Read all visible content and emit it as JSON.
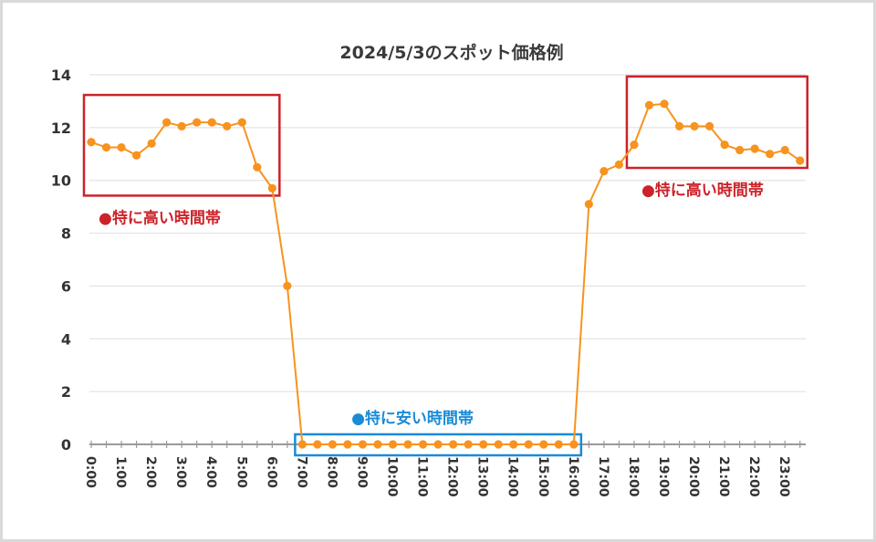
{
  "chart_data": {
    "type": "line",
    "title": "2024/5/3のスポット価格例",
    "xlabel": "",
    "ylabel": "",
    "ylim": [
      0,
      14
    ],
    "yticks": [
      0,
      2,
      4,
      6,
      8,
      10,
      12,
      14
    ],
    "grid": true,
    "x_tick_labels": [
      "0:00",
      "1:00",
      "2:00",
      "3:00",
      "4:00",
      "5:00",
      "6:00",
      "7:00",
      "8:00",
      "9:00",
      "10:00",
      "11:00",
      "12:00",
      "13:00",
      "14:00",
      "15:00",
      "16:00",
      "17:00",
      "18:00",
      "19:00",
      "20:00",
      "21:00",
      "22:00",
      "23:00"
    ],
    "x": [
      "0:00",
      "0:30",
      "1:00",
      "1:30",
      "2:00",
      "2:30",
      "3:00",
      "3:30",
      "4:00",
      "4:30",
      "5:00",
      "5:30",
      "6:00",
      "6:30",
      "7:00",
      "7:30",
      "8:00",
      "8:30",
      "9:00",
      "9:30",
      "10:00",
      "10:30",
      "11:00",
      "11:30",
      "12:00",
      "12:30",
      "13:00",
      "13:30",
      "14:00",
      "14:30",
      "15:00",
      "15:30",
      "16:00",
      "16:30",
      "17:00",
      "17:30",
      "18:00",
      "18:30",
      "19:00",
      "19:30",
      "20:00",
      "20:30",
      "21:00",
      "21:30",
      "22:00",
      "22:30",
      "23:00",
      "23:30"
    ],
    "series": [
      {
        "values": [
          11.45,
          11.25,
          11.25,
          10.95,
          11.4,
          12.2,
          12.05,
          12.2,
          12.2,
          12.05,
          12.2,
          10.5,
          9.7,
          6.0,
          0.0,
          0.0,
          0.0,
          0.0,
          0.0,
          0.0,
          0.0,
          0.0,
          0.0,
          0.0,
          0.0,
          0.0,
          0.0,
          0.0,
          0.0,
          0.0,
          0.0,
          0.0,
          0.0,
          9.1,
          10.35,
          10.6,
          11.35,
          12.85,
          12.9,
          12.05,
          12.05,
          12.05,
          11.35,
          11.15,
          11.2,
          11.0,
          11.15,
          10.75
        ],
        "color": "#f7931e"
      }
    ],
    "annotations": [
      {
        "text": "●特に高い時間帯",
        "color": "#cc2229",
        "range": [
          "0:00",
          "6:00"
        ]
      },
      {
        "text": "●特に安い時間帯",
        "color": "#1a8bd6",
        "range": [
          "7:00",
          "16:00"
        ]
      },
      {
        "text": "●特に高い時間帯",
        "color": "#cc2229",
        "range": [
          "18:00",
          "23:30"
        ]
      }
    ]
  }
}
